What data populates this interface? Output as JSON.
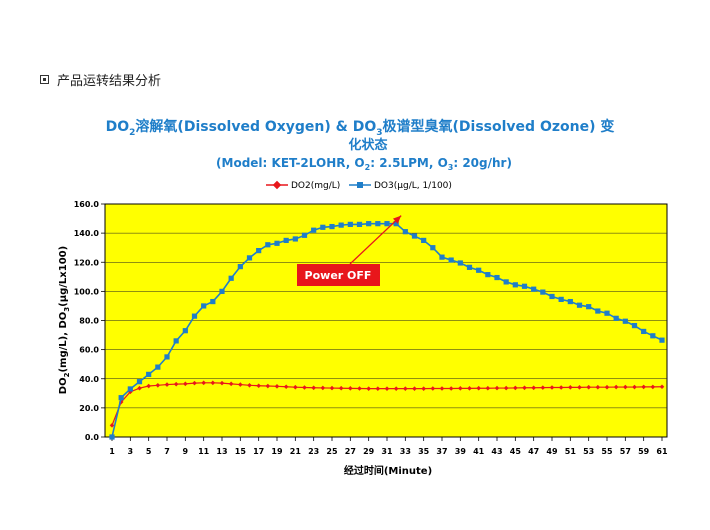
{
  "heading": {
    "text": "产品运转结果分析",
    "icon": "square-bullet-icon"
  },
  "chart_data": {
    "type": "line",
    "title_line1": {
      "a": "DO",
      "a_sub": "2",
      "b": "溶解氧(Dissolved Oxygen) & DO",
      "b_sub": "3",
      "c": "极谱型臭氧(Dissolved Ozone) 变"
    },
    "title_line2": "化状态",
    "subtitle": {
      "a": "(Model: KET-2LOHR, O",
      "a_sub": "2",
      "b": ": 2.5LPM, O",
      "b_sub": "3",
      "c": ": 20g/hr)"
    },
    "xlabel": "经过时间(Minute)",
    "ylabel": {
      "a": "DO",
      "a_sub": "2",
      "b": "(mg/L), DO",
      "b_sub": "3",
      "c": "(μg/Lx100)"
    },
    "ylim": [
      0,
      160
    ],
    "yticks": [
      "0.0",
      "20.0",
      "40.0",
      "60.0",
      "80.0",
      "100.0",
      "120.0",
      "140.0",
      "160.0"
    ],
    "xticks": [
      "1",
      "3",
      "5",
      "7",
      "9",
      "11",
      "13",
      "15",
      "17",
      "19",
      "21",
      "23",
      "25",
      "27",
      "29",
      "31",
      "33",
      "35",
      "37",
      "39",
      "41",
      "43",
      "45",
      "47",
      "49",
      "51",
      "53",
      "55",
      "57",
      "59",
      "61"
    ],
    "x": [
      1,
      2,
      3,
      4,
      5,
      6,
      7,
      8,
      9,
      10,
      11,
      12,
      13,
      14,
      15,
      16,
      17,
      18,
      19,
      20,
      21,
      22,
      23,
      24,
      25,
      26,
      27,
      28,
      29,
      30,
      31,
      32,
      33,
      34,
      35,
      36,
      37,
      38,
      39,
      40,
      41,
      42,
      43,
      44,
      45,
      46,
      47,
      48,
      49,
      50,
      51,
      52,
      53,
      54,
      55,
      56,
      57,
      58,
      59,
      60,
      61
    ],
    "series": [
      {
        "name": "DO2(mg/L)",
        "color": "#e8161b",
        "marker": "diamond",
        "values": [
          8,
          24,
          31,
          33.5,
          35,
          35.5,
          36,
          36.3,
          36.5,
          37,
          37.2,
          37.2,
          37,
          36.5,
          36,
          35.5,
          35.2,
          35,
          34.8,
          34.5,
          34.2,
          34,
          33.8,
          33.7,
          33.6,
          33.5,
          33.4,
          33.3,
          33.2,
          33.2,
          33.2,
          33.2,
          33.2,
          33.2,
          33.2,
          33.3,
          33.3,
          33.3,
          33.4,
          33.4,
          33.5,
          33.5,
          33.6,
          33.6,
          33.7,
          33.8,
          33.8,
          33.9,
          34,
          34,
          34.1,
          34.1,
          34.2,
          34.2,
          34.2,
          34.3,
          34.3,
          34.3,
          34.4,
          34.4,
          34.5
        ]
      },
      {
        "name": "DO3(μg/L, 1/100)",
        "color": "#1f7ec9",
        "marker": "square",
        "values": [
          0,
          27,
          33,
          38,
          43,
          48,
          55,
          66,
          73,
          83,
          90,
          93,
          100,
          109,
          117,
          123,
          128,
          132,
          133,
          135,
          136,
          138.5,
          142,
          144,
          144.5,
          145.5,
          146,
          146,
          146.5,
          146.5,
          146.5,
          146.5,
          141,
          138,
          135,
          130,
          123.5,
          121.5,
          119.5,
          116.5,
          114.5,
          111.5,
          109.5,
          106.5,
          104.5,
          103.5,
          101.5,
          99.5,
          96.5,
          94.5,
          93,
          90.5,
          89.5,
          86.5,
          85,
          81.5,
          79.5,
          76.5,
          72.5,
          69.5,
          66.5
        ]
      }
    ],
    "annotation": {
      "text": "Power OFF",
      "points_to_x": 32,
      "points_to_y": 146.5,
      "color": "#e8161b"
    },
    "plot_background": "#ffff00",
    "grid": true,
    "legend_position": "top"
  }
}
